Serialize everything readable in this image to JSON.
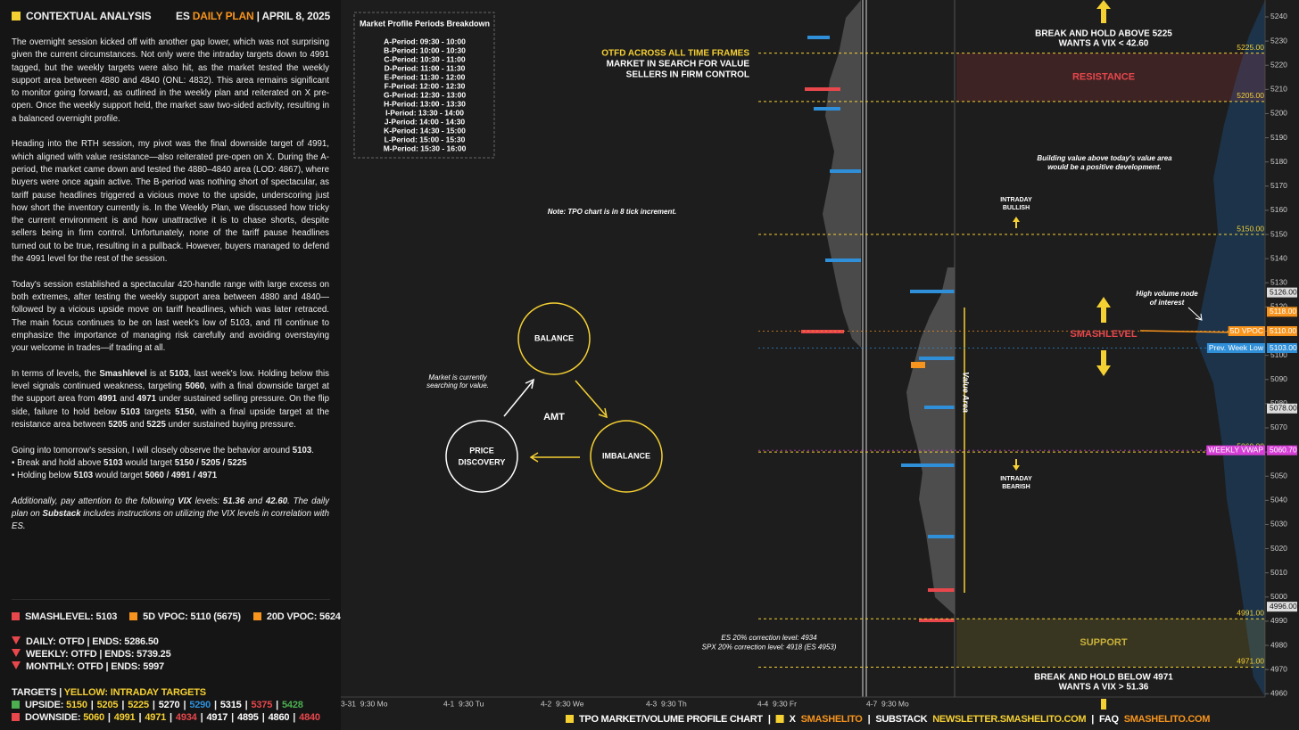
{
  "header": {
    "title": "CONTEXTUAL ANALYSIS",
    "ticker": "ES",
    "plan": "DAILY PLAN",
    "date": "| APRIL 8, 2025"
  },
  "analysis": {
    "paragraphs": [
      {
        "runs": [
          "The overnight session kicked off with another gap lower, which was not surprising given the current circumstances. Not only were the intraday targets down to 4991 tagged, but the weekly targets were also hit, as the market tested the weekly support area between 4880 and 4840 (ONL: 4832). This area remains significant to monitor going forward, as outlined in the weekly plan and reiterated on X pre-open. Once the weekly support held, the market saw two-sided activity, resulting in a balanced overnight profile."
        ]
      },
      {
        "runs": [
          "Heading into the RTH session, my pivot was the final downside target of 4991, which aligned with value resistance—also reiterated pre-open on X. During the A-period, the market came down and tested the 4880–4840 area (LOD: 4867), where buyers were once again active. The B-period was nothing short of spectacular, as tariff pause headlines triggered a vicious move to the upside, underscoring just how short the inventory currently is. In the Weekly Plan, we discussed how tricky the current environment is and how unattractive it is to chase shorts, despite sellers being in firm control. Unfortunately, none of the tariff pause headlines turned out to be true, resulting in a pullback. However, buyers managed to defend the 4991 level for the rest of the session."
        ]
      },
      {
        "runs": [
          "Today's session established a spectacular 420-handle range with large excess on both extremes, after testing the weekly support area between 4880 and 4840—followed by a vicious upside move on tariff headlines, which was later retraced. The main focus continues to be on last week's low of 5103, and I'll continue to emphasize the importance of managing risk carefully and avoiding overstaying your welcome in trades—if trading at all."
        ]
      },
      {
        "runs": [
          "In terms of levels, the ",
          "Smashlevel",
          " is at ",
          "5103",
          ", last week's low. Holding below this level signals continued weakness, targeting ",
          "5060",
          ", with a final downside target at the support area from ",
          "4991",
          " and ",
          "4971",
          " under sustained selling pressure. On the flip side, failure to hold below ",
          "5103",
          " targets ",
          "5150",
          ", with a final upside target at the resistance area between ",
          "5205",
          " and ",
          "5225",
          " under sustained buying pressure."
        ]
      },
      {
        "runs": [
          "Going into tomorrow's session, I will closely observe the behavior around ",
          "5103",
          "."
        ],
        "bullets": [
          [
            "• Break and hold above ",
            "5103",
            " would target ",
            "5150 / 5205 / 5225"
          ],
          [
            "• Holding below ",
            "5103",
            " would target ",
            "5060 / 4991 / 4971"
          ]
        ]
      },
      {
        "runs": [
          "Additionally, pay attention to the following ",
          "VIX",
          " levels: ",
          "51.36",
          " and ",
          "42.60",
          ". The daily plan on ",
          "Substack",
          " includes instructions on utilizing the VIX levels in correlation with ES."
        ],
        "italic": true
      }
    ]
  },
  "legend": {
    "levels": [
      {
        "text": "SMASHLEVEL: 5103",
        "color": "#e8474c"
      },
      {
        "text": "5D VPOC: 5110 (5675)",
        "color": "#f7941d"
      },
      {
        "text": "20D VPOC: 5624",
        "color": "#f7941d"
      }
    ],
    "trends": [
      "DAILY: OTFD | ENDS: 5286.50",
      "WEEKLY: OTFD | ENDS: 5739.25",
      "MONTHLY: OTFD | ENDS: 5997"
    ],
    "targets_title": "TARGETS |",
    "targets_note": "YELLOW: INTRADAY TARGETS",
    "separator": "|",
    "upside": {
      "label": "UPSIDE:",
      "color": "#4caf50",
      "items": [
        {
          "text": "5150",
          "color": "#f5d033"
        },
        {
          "text": "5205",
          "color": "#f5d033"
        },
        {
          "text": "5225",
          "color": "#f5d033"
        },
        {
          "text": "5270",
          "color": "#ffffff"
        },
        {
          "text": "5290",
          "color": "#2f8fd8"
        },
        {
          "text": "5315",
          "color": "#ffffff"
        },
        {
          "text": "5375",
          "color": "#e8474c"
        },
        {
          "text": "5428",
          "color": "#4caf50"
        }
      ]
    },
    "downside": {
      "label": "DOWNSIDE:",
      "color": "#e8474c",
      "items": [
        {
          "text": "5060",
          "color": "#f5d033"
        },
        {
          "text": "4991",
          "color": "#f5d033"
        },
        {
          "text": "4971",
          "color": "#f5d033"
        },
        {
          "text": "4934",
          "color": "#e8474c"
        },
        {
          "text": "4917",
          "color": "#ffffff"
        },
        {
          "text": "4895",
          "color": "#ffffff"
        },
        {
          "text": "4860",
          "color": "#ffffff"
        },
        {
          "text": "4840",
          "color": "#e8474c"
        }
      ]
    }
  },
  "periods": {
    "title": "Market Profile Periods Breakdown",
    "rows": [
      "A-Period: 09:30 - 10:00",
      "B-Period: 10:00 - 10:30",
      "C-Period: 10:30 - 11:00",
      "D-Period: 11:00 - 11:30",
      "E-Period: 11:30 - 12:00",
      "F-Period: 12:00 - 12:30",
      "G-Period: 12:30 - 13:00",
      "H-Period: 13:00 - 13:30",
      "I-Period: 13:30 - 14:00",
      "J-Period: 14:00 - 14:30",
      "K-Period: 14:30 - 15:00",
      "L-Period: 15:00 - 15:30",
      "M-Period: 15:30 - 16:00"
    ]
  },
  "amt": {
    "center": "AMT",
    "balance": "BALANCE",
    "imbalance": "IMBALANCE",
    "discovery": [
      "PRICE",
      "DISCOVERY"
    ],
    "note": [
      "Market is currently",
      "searching for value."
    ]
  },
  "notes": {
    "tpo": "Note: TPO chart is in 8 tick increment.",
    "context": [
      {
        "text": "OTFD ACROSS ALL TIME FRAMES",
        "color": "#f5d033"
      },
      {
        "text": "MARKET IN SEARCH FOR VALUE",
        "color": "#ffffff"
      },
      {
        "text": "SELLERS IN FIRM CONTROL",
        "color": "#ffffff"
      }
    ],
    "corrections": [
      "ES 20% correction level: 4934",
      "SPX 20% correction level: 4918 (ES 4953)"
    ]
  },
  "price_axis": {
    "ylim": [
      5247,
      4959
    ],
    "yticks": [
      5240,
      5230,
      5220,
      5210,
      5200,
      5190,
      5180,
      5170,
      5160,
      5150,
      5140,
      5130,
      5120,
      5110,
      5100,
      5090,
      5080,
      5070,
      5060,
      5050,
      5040,
      5030,
      5020,
      5010,
      5000,
      4990,
      4980,
      4970,
      4960
    ]
  },
  "levels": [
    {
      "value": 5225,
      "label": "5225.00"
    },
    {
      "value": 5205,
      "label": "5205.00"
    },
    {
      "value": 5150,
      "label": "5150.00"
    },
    {
      "value": 5060,
      "label": "5060.00"
    },
    {
      "value": 4991,
      "label": "4991.00"
    },
    {
      "value": 4971,
      "label": "4971.00"
    }
  ],
  "level_color": "#f5d033",
  "zones": [
    {
      "name": "RESISTANCE",
      "range": [
        5205,
        5225
      ],
      "color": "#e8474c"
    },
    {
      "name": "SUPPORT",
      "range": [
        4971,
        4991
      ],
      "color": "#c9b23a"
    }
  ],
  "markers": [
    {
      "value": 5126,
      "label": "5126.00",
      "color": "#dddddd"
    },
    {
      "value": 5118,
      "label": "5118.00",
      "color": "#f7941d"
    },
    {
      "value": 5110,
      "label": "5110.00",
      "color": "#f7941d",
      "tag": "5D VPOC"
    },
    {
      "value": 5103,
      "label": "5103.00",
      "color": "#2f8fd8",
      "tag": "Prev. Week Low"
    },
    {
      "value": 5078,
      "label": "5078.00",
      "color": "#dddddd"
    },
    {
      "value": 5060.7,
      "label": "5060.70",
      "color": "#d63fd6",
      "tag": "WEEKLY VWAP"
    },
    {
      "value": 4996,
      "label": "4996.00",
      "color": "#dddddd"
    }
  ],
  "annotations": [
    {
      "lines": [
        "BREAK AND HOLD ABOVE 5225",
        "WANTS A VIX < 42.60"
      ],
      "color": "#ffffff"
    },
    {
      "lines": [
        "Building value above today's value area",
        "would be a positive development."
      ],
      "color": "#ffffff"
    },
    {
      "lines": [
        "INTRADAY",
        "BULLISH"
      ],
      "color": "#ffffff"
    },
    {
      "lines": [
        "High volume node",
        "of interest"
      ],
      "color": "#ffffff"
    },
    {
      "lines": [
        "SMASHLEVEL"
      ],
      "color": "#e8474c"
    },
    {
      "lines": [
        "INTRADAY",
        "BEARISH"
      ],
      "color": "#ffffff"
    },
    {
      "lines": [
        "BREAK AND HOLD BELOW 4971",
        "WANTS A VIX > 51.36"
      ],
      "color": "#ffffff"
    },
    {
      "lines": [
        "Value Area"
      ],
      "color": "#ffffff"
    }
  ],
  "time_axis": [
    "3-31  9:30 Mo",
    "4-1  9:30 Tu",
    "4-2  9:30 We",
    "4-3  9:30 Th",
    "4-4  9:30 Fr",
    "4-7  9:30 Mo"
  ],
  "footer": [
    {
      "text": "TPO MARKET/VOLUME PROFILE CHART",
      "color": "#ffffff",
      "box": true
    },
    {
      "text": "|",
      "color": "#ffffff"
    },
    {
      "text": "X",
      "color": "#ffffff",
      "box": true
    },
    {
      "text": "SMASHELITO",
      "color": "#f7941d"
    },
    {
      "text": "|",
      "color": "#ffffff"
    },
    {
      "text": "SUBSTACK",
      "color": "#ffffff"
    },
    {
      "text": "NEWSLETTER.SMASHELITO.COM",
      "color": "#f5d033"
    },
    {
      "text": "|",
      "color": "#ffffff"
    },
    {
      "text": "FAQ",
      "color": "#ffffff"
    },
    {
      "text": "SMASHELITO.COM",
      "color": "#f7941d"
    }
  ]
}
